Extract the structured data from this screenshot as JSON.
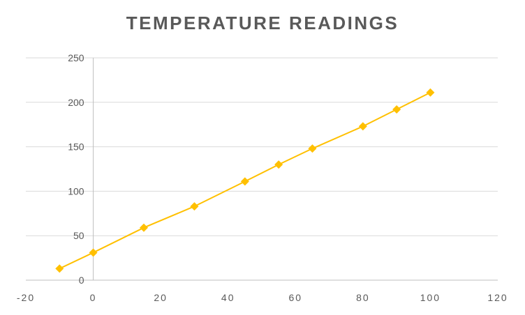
{
  "chart_data": {
    "type": "scatter",
    "title": "TEMPERATURE READINGS",
    "xlabel": "",
    "ylabel": "",
    "xlim": [
      -20,
      120
    ],
    "ylim": [
      0,
      250
    ],
    "x_ticks": [
      -20,
      0,
      20,
      40,
      60,
      80,
      100,
      120
    ],
    "y_ticks": [
      0,
      50,
      100,
      150,
      200,
      250
    ],
    "grid": "horizontal",
    "legend": "none",
    "series": [
      {
        "color": "#FFC000",
        "marker": "diamond",
        "line": true,
        "points": [
          {
            "x": -10,
            "y": 13
          },
          {
            "x": 0,
            "y": 31
          },
          {
            "x": 15,
            "y": 59
          },
          {
            "x": 30,
            "y": 83
          },
          {
            "x": 45,
            "y": 111
          },
          {
            "x": 55,
            "y": 130
          },
          {
            "x": 65,
            "y": 148
          },
          {
            "x": 80,
            "y": 173
          },
          {
            "x": 90,
            "y": 192
          },
          {
            "x": 100,
            "y": 211
          }
        ]
      }
    ],
    "colors": {
      "grid": "#D9D9D9",
      "axis": "#BFBFBF",
      "text": "#595959"
    }
  }
}
